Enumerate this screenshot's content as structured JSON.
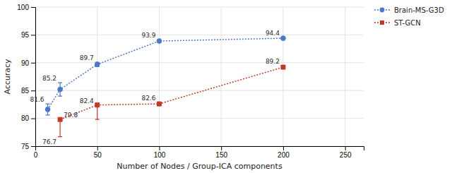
{
  "chart_data": {
    "type": "line",
    "xlabel": "Number of Nodes / Group-ICA components",
    "ylabel": "Accuracy",
    "xlim": [
      0,
      265
    ],
    "ylim": [
      75,
      100
    ],
    "xticks": [
      0,
      50,
      100,
      150,
      200,
      250
    ],
    "yticks": [
      75,
      80,
      85,
      90,
      95,
      100
    ],
    "grid": true,
    "legend": "right",
    "series": [
      {
        "name": "Brain-MS-G3D",
        "color": "#4d78c9",
        "marker": "circle",
        "line_style": "dotted",
        "x": [
          10,
          20,
          50,
          100,
          200
        ],
        "values": [
          81.6,
          85.2,
          89.7,
          93.9,
          94.4
        ],
        "yerr_lo": [
          1.0,
          1.2,
          0.4,
          0.2,
          0.2
        ],
        "yerr_hi": [
          1.0,
          1.2,
          0.4,
          0.2,
          0.2
        ]
      },
      {
        "name": "ST-GCN",
        "color": "#c0392b",
        "marker": "square",
        "line_style": "dotted",
        "x": [
          20,
          50,
          100,
          200
        ],
        "values": [
          79.8,
          82.4,
          82.6,
          89.2
        ],
        "yerr_lo": [
          3.1,
          2.6,
          0.3,
          0.3
        ],
        "yerr_hi": [
          0.0,
          0.0,
          0.3,
          0.3
        ]
      }
    ],
    "annotations": [
      {
        "x": 10,
        "y": 81.6,
        "text": "81.6"
      },
      {
        "x": 20,
        "y": 85.2,
        "text": "85.2"
      },
      {
        "x": 50,
        "y": 89.7,
        "text": "89.7"
      },
      {
        "x": 100,
        "y": 93.9,
        "text": "93.9"
      },
      {
        "x": 200,
        "y": 94.4,
        "text": "94.4"
      },
      {
        "x": 20,
        "y": 76.7,
        "text": "76.7"
      },
      {
        "x": 20,
        "y": 79.8,
        "text": "79.8"
      },
      {
        "x": 50,
        "y": 82.4,
        "text": "82.4"
      },
      {
        "x": 100,
        "y": 82.6,
        "text": "82.6"
      },
      {
        "x": 200,
        "y": 89.2,
        "text": "89.2"
      }
    ]
  }
}
